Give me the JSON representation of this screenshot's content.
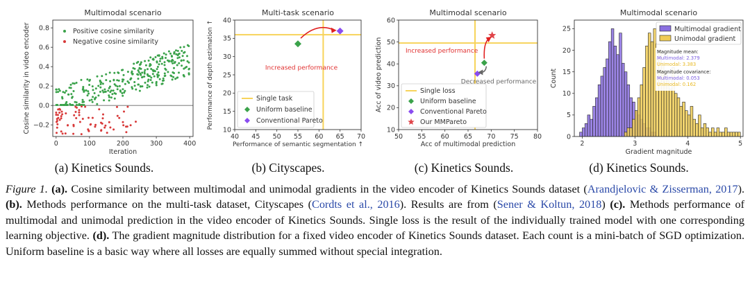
{
  "figure": {
    "subcaptions": [
      "(a) Kinetics Sounds.",
      "(b) Cityscapes.",
      "(c) Kinetics Sounds.",
      "(d) Kinetics Sounds."
    ],
    "caption": {
      "label": "Figure 1.",
      "a_tag": "(a).",
      "a_text": " Cosine similarity between multimodal and unimodal gradients in the video encoder of Kinetics Sounds dataset (",
      "a_ref": "Arandjelovic & Zisserman, 2017",
      "a_end": "). ",
      "b_tag": "(b).",
      "b_text": " Methods performance on the multi-task dataset, Cityscapes (",
      "b_ref1": "Cordts et al., 2016",
      "b_mid": "). Results are from (",
      "b_ref2": "Sener & Koltun, 2018",
      "b_end": ") ",
      "c_tag": "(c).",
      "c_text": " Methods performance of multimodal and unimodal prediction in the video encoder of Kinetics Sounds. Single loss is the result of the individually trained model with one corresponding learning objective. ",
      "d_tag": "(d).",
      "d_text": " The gradient magnitude distribution for a fixed video encoder of Kinetics Sounds dataset. Each count is a mini-batch of SGD optimization. Uniform baseline is a basic way where all losses are equally summed without special integration."
    }
  },
  "chart_data": [
    {
      "type": "scatter",
      "title": "Multimodal scenario",
      "xlabel": "Iteration",
      "ylabel": "Cosine similarity in video encoder",
      "xlim": [
        -10,
        410
      ],
      "ylim": [
        -0.32,
        0.88
      ],
      "xticks": [
        "0",
        "100",
        "200",
        "300",
        "400"
      ],
      "yticks": [
        "−0.2",
        "0.0",
        "0.2",
        "0.4",
        "0.6",
        "0.8"
      ],
      "hline": 0,
      "legend": {
        "position": "upper-left",
        "entries": [
          "Positive cosine similarity",
          "Negative cosine similarity"
        ]
      },
      "colors": {
        "positive": "#3aa24a",
        "negative": "#d83a3a"
      },
      "series": [
        {
          "name": "Positive cosine similarity",
          "trend": "0.03 + 0.0011*x, spread ±0.15, ~320 points over x in [0, 400]"
        },
        {
          "name": "Negative cosine similarity",
          "trend": "y in [-0.3, -0.01], ~75 points over x in [0, 240], mostly x < 140"
        }
      ]
    },
    {
      "type": "scatter",
      "title": "Multi-task scenario",
      "xlabel": "Performance of semantic segmentation  ↑",
      "ylabel": "Performance of depth estimation  ↑",
      "xlim": [
        40,
        70
      ],
      "ylim": [
        10,
        40
      ],
      "xticks": [
        "40",
        "45",
        "50",
        "55",
        "60",
        "65",
        "70"
      ],
      "yticks": [
        "10",
        "15",
        "20",
        "25",
        "30",
        "35",
        "40"
      ],
      "single_task": {
        "x": 61,
        "y": 36
      },
      "points": [
        {
          "name": "Uniform baseline",
          "x": 55,
          "y": 33.5,
          "marker": "diamond",
          "color": "#3aa24a"
        },
        {
          "name": "Conventional Pareto",
          "x": 65,
          "y": 37,
          "marker": "diamond",
          "color": "#8a4cf0"
        }
      ],
      "annotation": "Increased performance",
      "legend": {
        "position": "lower-left",
        "entries": [
          "Single task",
          "Uniform baseline",
          "Conventional Pareto"
        ]
      }
    },
    {
      "type": "scatter",
      "title": "Multimodal scenario",
      "xlabel": "Acc of multimodal prediction",
      "ylabel": "Acc of video prediction",
      "xlim": [
        50,
        80
      ],
      "ylim": [
        10,
        60
      ],
      "xticks": [
        "50",
        "55",
        "60",
        "65",
        "70",
        "75",
        "80"
      ],
      "yticks": [
        "10",
        "20",
        "30",
        "40",
        "50",
        "60"
      ],
      "single_loss": {
        "x": 66.5,
        "y": 49.5
      },
      "points": [
        {
          "name": "Uniform baseline",
          "x": 68.5,
          "y": 40.5,
          "marker": "diamond",
          "color": "#3aa24a"
        },
        {
          "name": "Conventional Pareto",
          "x": 67,
          "y": 35.5,
          "marker": "diamond",
          "color": "#8a4cf0"
        },
        {
          "name": "Our MMPareto",
          "x": 70.2,
          "y": 53,
          "marker": "star",
          "color": "#e0454a"
        }
      ],
      "annotations": [
        "Increased performance",
        "Decreased performance"
      ],
      "legend": {
        "position": "lower-left",
        "entries": [
          "Single loss",
          "Uniform baseline",
          "Conventional Pareto",
          "Our MMPareto"
        ]
      }
    },
    {
      "type": "bar",
      "title": "Multimodal scenario",
      "xlabel": "Gradient magnitude",
      "ylabel": "Count",
      "xlim": [
        1.85,
        5.05
      ],
      "ylim": [
        0,
        27
      ],
      "xticks": [
        "2",
        "3",
        "4",
        "5"
      ],
      "yticks": [
        "0",
        "5",
        "10",
        "15",
        "20",
        "25"
      ],
      "bin_width": 0.05,
      "series": [
        {
          "name": "Multimodal gradient",
          "color": "#8a6fe0",
          "start": 1.95,
          "values": [
            1,
            2,
            3,
            5,
            4,
            7,
            9,
            12,
            14,
            16,
            18,
            22,
            25,
            21,
            19,
            24,
            17,
            15,
            12,
            9,
            8,
            6,
            5,
            4,
            3,
            2,
            2,
            1,
            1
          ]
        },
        {
          "name": "Unimodal gradient",
          "color": "#f0cc55",
          "start": 2.8,
          "values": [
            1,
            2,
            2,
            4,
            6,
            9,
            12,
            16,
            21,
            24,
            22,
            25,
            18,
            20,
            17,
            15,
            13,
            11,
            16,
            10,
            9,
            7,
            8,
            6,
            5,
            7,
            4,
            3,
            5,
            2,
            3,
            2,
            1,
            2,
            1,
            2,
            1,
            1,
            2,
            1,
            1,
            1,
            1,
            1
          ]
        }
      ],
      "stats": {
        "mean_title": "Magnitude mean:",
        "mean_multimodal": "Multimodal: 2.379",
        "mean_unimodal": "Unimodal: 3.383",
        "cov_title": "Magnitude covariance:",
        "cov_multimodal": "Multimodal: 0.053",
        "cov_unimodal": "Unimodal: 0.162"
      },
      "legend": {
        "position": "top-right",
        "entries": [
          "Multimodal gradient",
          "Unimodal gradient"
        ]
      }
    }
  ]
}
